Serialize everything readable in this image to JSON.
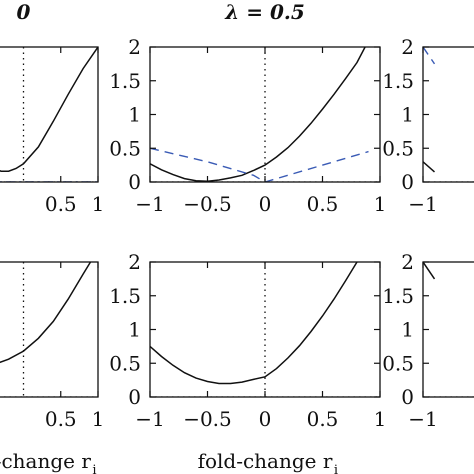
{
  "chart_data": [
    {
      "type": "line",
      "title": "0",
      "xlabel": "",
      "xlim": [
        -1,
        1
      ],
      "ylim": [
        0,
        2
      ],
      "x_ticks": [
        "0.5",
        "1"
      ],
      "y_ticks": [],
      "series": [
        {
          "style": "solid",
          "color": "#111111",
          "points": [
            [
              -1,
              0.75
            ],
            [
              -0.8,
              0.52
            ],
            [
              -0.6,
              0.33
            ],
            [
              -0.4,
              0.2
            ],
            [
              -0.3,
              0.16
            ],
            [
              -0.2,
              0.16
            ],
            [
              -0.1,
              0.2
            ],
            [
              0,
              0.27
            ],
            [
              0.2,
              0.52
            ],
            [
              0.4,
              0.9
            ],
            [
              0.6,
              1.3
            ],
            [
              0.8,
              1.68
            ],
            [
              1,
              2.0
            ]
          ]
        },
        {
          "style": "dashdot",
          "color": "#3a5bb5",
          "points": [
            [
              -1,
              0
            ],
            [
              1,
              0
            ]
          ]
        }
      ]
    },
    {
      "type": "line",
      "title": "λ = 0.5",
      "xlabel": "",
      "xlim": [
        -1,
        1
      ],
      "ylim": [
        0,
        2
      ],
      "x_ticks": [
        "−1",
        "−0.5",
        "0",
        "0.5",
        "1"
      ],
      "y_ticks": [
        "0",
        "0.5",
        "1",
        "1.5",
        "2"
      ],
      "series": [
        {
          "style": "solid",
          "color": "#111111",
          "points": [
            [
              -1,
              0.27
            ],
            [
              -0.9,
              0.18
            ],
            [
              -0.8,
              0.11
            ],
            [
              -0.7,
              0.05
            ],
            [
              -0.6,
              0.02
            ],
            [
              -0.5,
              0.01
            ],
            [
              -0.4,
              0.03
            ],
            [
              -0.3,
              0.06
            ],
            [
              -0.2,
              0.1
            ],
            [
              -0.1,
              0.17
            ],
            [
              0,
              0.25
            ],
            [
              0.1,
              0.37
            ],
            [
              0.2,
              0.51
            ],
            [
              0.3,
              0.68
            ],
            [
              0.4,
              0.87
            ],
            [
              0.5,
              1.08
            ],
            [
              0.6,
              1.3
            ],
            [
              0.7,
              1.53
            ],
            [
              0.8,
              1.77
            ],
            [
              0.87,
              2.0
            ]
          ]
        },
        {
          "style": "dashed",
          "color": "#3a5bb5",
          "points": [
            [
              -1,
              0.5
            ],
            [
              -0.5,
              0.3
            ],
            [
              -0.1,
              0.1
            ],
            [
              0,
              0
            ],
            [
              0.9,
              0.45
            ]
          ]
        }
      ]
    },
    {
      "type": "line",
      "title": "",
      "xlabel": "",
      "xlim": [
        -1,
        1
      ],
      "ylim": [
        0,
        2
      ],
      "x_ticks": [
        "−1"
      ],
      "y_ticks": [
        "0",
        "0.5",
        "1",
        "1.5",
        "2"
      ],
      "series": [
        {
          "style": "solid",
          "color": "#111111",
          "points": [
            [
              -1,
              0.3
            ],
            [
              -0.9,
              0.15
            ]
          ]
        },
        {
          "style": "dashed",
          "color": "#3a5bb5",
          "points": [
            [
              -1,
              2.0
            ],
            [
              -0.9,
              1.75
            ]
          ]
        }
      ]
    },
    {
      "type": "line",
      "title": "",
      "xlabel": "fold-change r",
      "xlabel_sub": "i",
      "xlim": [
        -1,
        1
      ],
      "ylim": [
        0,
        2
      ],
      "x_ticks": [
        "0.5",
        "1"
      ],
      "y_ticks": [],
      "series": [
        {
          "style": "solid",
          "color": "#111111",
          "points": [
            [
              -1,
              0.45
            ],
            [
              -0.8,
              0.43
            ],
            [
              -0.6,
              0.44
            ],
            [
              -0.4,
              0.48
            ],
            [
              -0.2,
              0.56
            ],
            [
              0,
              0.68
            ],
            [
              0.2,
              0.87
            ],
            [
              0.4,
              1.12
            ],
            [
              0.6,
              1.45
            ],
            [
              0.8,
              1.82
            ],
            [
              0.9,
              2.0
            ]
          ]
        }
      ]
    },
    {
      "type": "line",
      "title": "",
      "xlabel": "fold-change r",
      "xlabel_sub": "i",
      "xlim": [
        -1,
        1
      ],
      "ylim": [
        0,
        2
      ],
      "x_ticks": [
        "−1",
        "−0.5",
        "0",
        "0.5",
        "1"
      ],
      "y_ticks": [
        "0",
        "0.5",
        "1",
        "1.5",
        "2"
      ],
      "series": [
        {
          "style": "solid",
          "color": "#111111",
          "points": [
            [
              -1,
              0.75
            ],
            [
              -0.9,
              0.6
            ],
            [
              -0.8,
              0.47
            ],
            [
              -0.7,
              0.36
            ],
            [
              -0.6,
              0.28
            ],
            [
              -0.5,
              0.23
            ],
            [
              -0.4,
              0.2
            ],
            [
              -0.3,
              0.2
            ],
            [
              -0.2,
              0.22
            ],
            [
              -0.1,
              0.26
            ],
            [
              0,
              0.3
            ],
            [
              0.1,
              0.42
            ],
            [
              0.2,
              0.58
            ],
            [
              0.3,
              0.76
            ],
            [
              0.4,
              0.97
            ],
            [
              0.5,
              1.2
            ],
            [
              0.6,
              1.45
            ],
            [
              0.7,
              1.72
            ],
            [
              0.8,
              2.0
            ]
          ]
        }
      ]
    },
    {
      "type": "line",
      "title": "",
      "xlabel": "",
      "xlim": [
        -1,
        1
      ],
      "ylim": [
        0,
        2
      ],
      "x_ticks": [
        "−1"
      ],
      "y_ticks": [
        "0",
        "0.5",
        "1",
        "1.5",
        "2"
      ],
      "series": [
        {
          "style": "solid",
          "color": "#111111",
          "points": [
            [
              -1,
              2.0
            ],
            [
              -0.9,
              1.75
            ]
          ]
        }
      ]
    }
  ]
}
